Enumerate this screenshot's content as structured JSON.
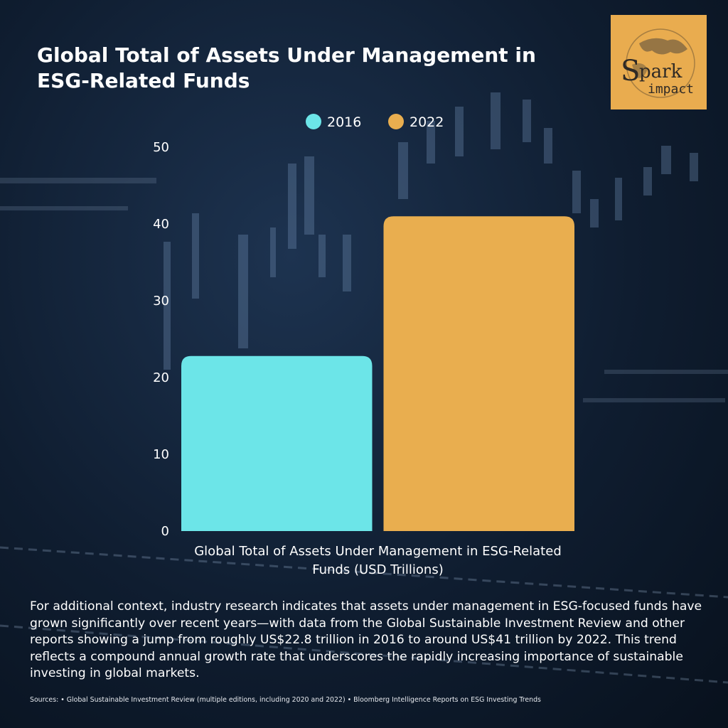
{
  "title": "Global Total of Assets Under Management in ESG-Related Funds",
  "logo": {
    "text_main": "Spark",
    "text_sub": "impact",
    "background": "#e9ac4f"
  },
  "chart_data": {
    "type": "bar",
    "categories": [
      "Global Total of Assets Under Management in ESG-Related Funds (USD Trillions)"
    ],
    "series": [
      {
        "name": "2016",
        "values": [
          22.8
        ],
        "color": "#6ce5e8"
      },
      {
        "name": "2022",
        "values": [
          41
        ],
        "color": "#e9ae4f"
      }
    ],
    "xlabel_lines": [
      "Global Total of Assets Under Management in ESG-Related",
      "Funds (USD Trillions)"
    ],
    "ylim": [
      0,
      50
    ],
    "yticks": [
      0,
      10,
      20,
      30,
      40,
      50
    ],
    "grid": false,
    "legend_position": "top-center"
  },
  "description": "For additional context, industry research indicates that assets under management in ESG-focused funds have grown significantly over recent years—with data from the Global Sustainable Investment Review and other reports showing a jump from roughly US$22.8 trillion in 2016 to around US$41 trillion by 2022. This trend reflects a compound annual growth rate that underscores the rapidly increasing importance of sustainable investing in global markets.",
  "sources": "Sources: • Global Sustainable Investment Review (multiple editions, including 2020 and 2022) • Bloomberg Intelligence Reports on ESG Investing Trends"
}
